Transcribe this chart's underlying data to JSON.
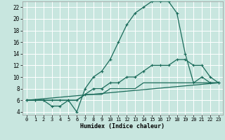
{
  "xlabel": "Humidex (Indice chaleur)",
  "bg_color": "#c8e6df",
  "grid_color": "#ffffff",
  "line_color": "#1a6b5a",
  "xlim": [
    -0.5,
    23.5
  ],
  "ylim": [
    3.5,
    23.0
  ],
  "xticks": [
    0,
    1,
    2,
    3,
    4,
    5,
    6,
    7,
    8,
    9,
    10,
    11,
    12,
    13,
    14,
    15,
    16,
    17,
    18,
    19,
    20,
    21,
    22,
    23
  ],
  "yticks": [
    4,
    6,
    8,
    10,
    12,
    14,
    16,
    18,
    20,
    22
  ],
  "series1_x": [
    0,
    1,
    2,
    3,
    4,
    5,
    6,
    7,
    8,
    9,
    10,
    11,
    12,
    13,
    14,
    15,
    16,
    17,
    18,
    19,
    20,
    21,
    22,
    23
  ],
  "series1_y": [
    6,
    6,
    6,
    5,
    5,
    6,
    4,
    8,
    10,
    11,
    13,
    16,
    19,
    21,
    22,
    23,
    23,
    23,
    21,
    14,
    9,
    10,
    9,
    9
  ],
  "series2_x": [
    0,
    1,
    2,
    3,
    4,
    5,
    6,
    7,
    8,
    9,
    10,
    11,
    12,
    13,
    14,
    15,
    16,
    17,
    18,
    19,
    20,
    21,
    22,
    23
  ],
  "series2_y": [
    6,
    6,
    6,
    6,
    6,
    6,
    6,
    7,
    8,
    8,
    9,
    9,
    10,
    10,
    11,
    12,
    12,
    12,
    13,
    13,
    12,
    12,
    10,
    9
  ],
  "series3_x": [
    0,
    23
  ],
  "series3_y": [
    6,
    9
  ],
  "series4_x": [
    0,
    1,
    2,
    3,
    4,
    5,
    6,
    7,
    8,
    9,
    10,
    11,
    12,
    13,
    14,
    15,
    16,
    17,
    18,
    19,
    20,
    21,
    22,
    23
  ],
  "series4_y": [
    6,
    6,
    6,
    6,
    6,
    6,
    6,
    7,
    7,
    7,
    8,
    8,
    8,
    8,
    9,
    9,
    9,
    9,
    9,
    9,
    9,
    9,
    9,
    9
  ]
}
